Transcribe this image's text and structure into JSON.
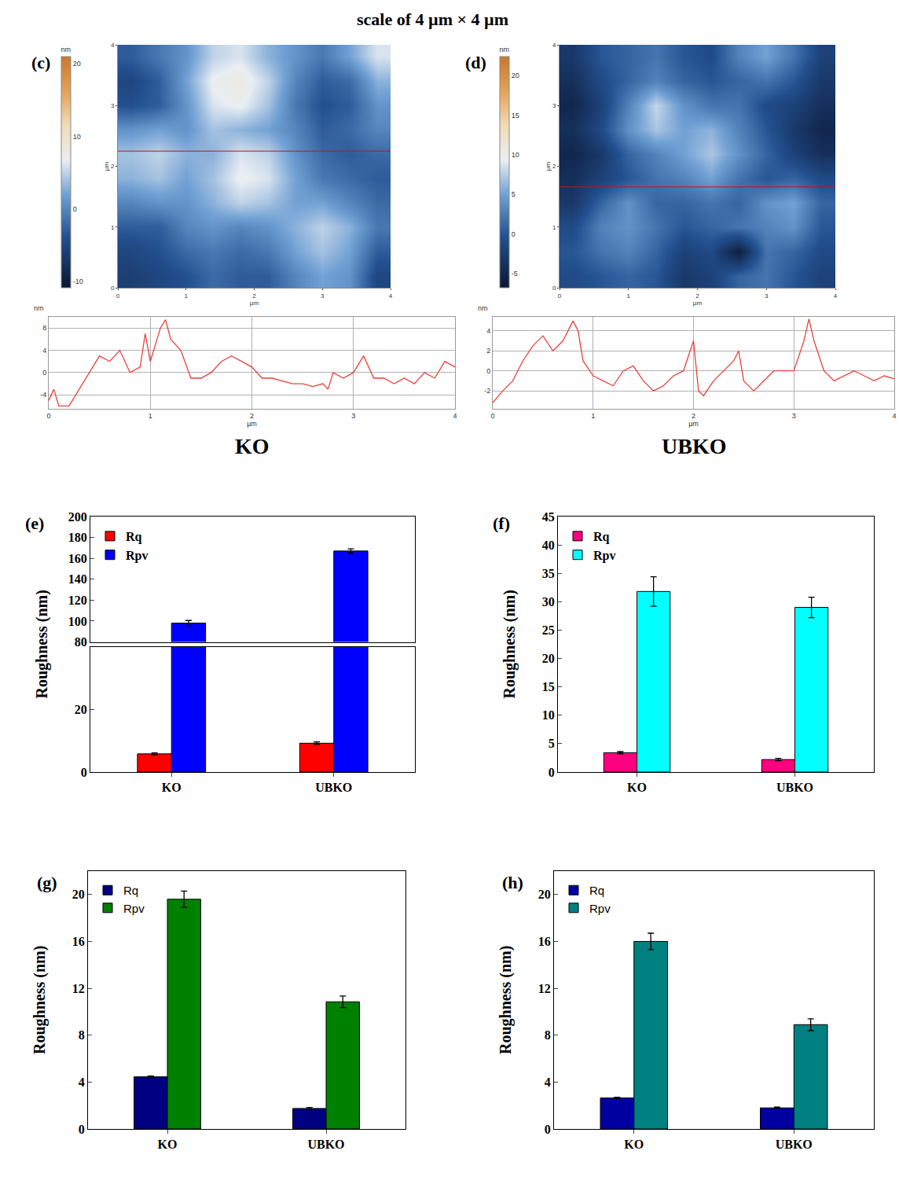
{
  "title": "scale of 4 µm × 4 µm",
  "chart_data": [
    {
      "type": "heatmap",
      "panel": "(c)",
      "x": [
        0.2,
        0.6,
        1.0,
        1.4,
        1.8,
        2.2,
        2.6,
        3.0,
        3.4,
        3.8
      ],
      "y": [
        0.2,
        0.6,
        1.0,
        1.4,
        1.8,
        2.2,
        2.6,
        3.0,
        3.4,
        3.8
      ],
      "z": [
        [
          -6,
          -5,
          -4,
          -2,
          -3,
          -3,
          0,
          2,
          1,
          -5
        ],
        [
          -5,
          -4,
          -2,
          -1,
          -2,
          -1,
          2,
          4,
          2,
          -3
        ],
        [
          -3,
          -3,
          0,
          1,
          0,
          1,
          3,
          5,
          3,
          -1
        ],
        [
          0,
          1,
          1,
          3,
          5,
          4,
          2,
          2,
          0,
          -2
        ],
        [
          3,
          4,
          2,
          4,
          7,
          6,
          2,
          -1,
          -2,
          -3
        ],
        [
          4,
          5,
          3,
          3,
          6,
          5,
          1,
          -2,
          -3,
          -2
        ],
        [
          1,
          2,
          1,
          4,
          3,
          2,
          0,
          -3,
          -2,
          0
        ],
        [
          -4,
          -3,
          1,
          6,
          7,
          4,
          -1,
          -4,
          -3,
          1
        ],
        [
          -5,
          -3,
          2,
          7,
          8,
          5,
          0,
          -3,
          -2,
          3
        ],
        [
          -3,
          -1,
          1,
          5,
          6,
          3,
          1,
          -1,
          2,
          6
        ]
      ],
      "xlim": [
        0,
        4
      ],
      "ylim": [
        0,
        4
      ],
      "xticks": [
        0,
        1,
        2,
        3,
        4
      ],
      "yticks": [
        0,
        1,
        2,
        3,
        4
      ],
      "x_label": "µm",
      "y_label": "µm",
      "profile_y": 2.25,
      "colorbar": {
        "title": "nm",
        "range": [
          -10.9,
          21
        ],
        "ticks": [
          -10,
          0,
          10,
          20
        ]
      }
    },
    {
      "type": "heatmap",
      "panel": "(d)",
      "x": [
        0.2,
        0.6,
        1.0,
        1.4,
        1.8,
        2.2,
        2.6,
        3.0,
        3.4,
        3.8
      ],
      "y": [
        0.2,
        0.6,
        1.0,
        1.4,
        1.8,
        2.2,
        2.6,
        3.0,
        3.4,
        3.8
      ],
      "z": [
        [
          -1,
          0,
          1,
          0,
          -3,
          -2,
          1,
          2,
          0,
          -2
        ],
        [
          0,
          2,
          3,
          1,
          -2,
          -1,
          -6,
          2,
          1,
          -1
        ],
        [
          -1,
          3,
          4,
          2,
          0,
          1,
          2,
          3,
          4,
          0
        ],
        [
          -3,
          1,
          4,
          1,
          1,
          2,
          1,
          4,
          5,
          1
        ],
        [
          -4,
          -2,
          0,
          2,
          3,
          5,
          2,
          0,
          1,
          -1
        ],
        [
          -5,
          -3,
          1,
          3,
          5,
          7,
          4,
          1,
          -2,
          -4
        ],
        [
          -4,
          -1,
          4,
          7,
          5,
          6,
          3,
          0,
          -3,
          -5
        ],
        [
          -5,
          -2,
          3,
          8,
          4,
          2,
          2,
          -1,
          -2,
          -4
        ],
        [
          -4,
          -1,
          1,
          3,
          1,
          0,
          1,
          2,
          0,
          -3
        ],
        [
          -3,
          0,
          1,
          2,
          0,
          -1,
          3,
          5,
          2,
          -2
        ]
      ],
      "xlim": [
        0,
        4
      ],
      "ylim": [
        0,
        4
      ],
      "xticks": [
        0,
        1,
        2,
        3,
        4
      ],
      "yticks": [
        0,
        1,
        2,
        3,
        4
      ],
      "x_label": "µm",
      "y_label": "µm",
      "profile_y": 1.66,
      "colorbar": {
        "title": "nm",
        "range": [
          -6.8,
          22.4
        ],
        "ticks": [
          -5,
          0,
          5,
          10,
          15,
          20
        ]
      }
    },
    {
      "type": "line",
      "caption": "KO",
      "color": "#e8413a",
      "x": [
        0,
        0.05,
        0.1,
        0.2,
        0.3,
        0.4,
        0.5,
        0.6,
        0.7,
        0.8,
        0.9,
        0.95,
        1.0,
        1.1,
        1.15,
        1.2,
        1.3,
        1.4,
        1.5,
        1.6,
        1.7,
        1.8,
        1.9,
        2.0,
        2.1,
        2.2,
        2.3,
        2.4,
        2.5,
        2.6,
        2.7,
        2.75,
        2.8,
        2.9,
        3.0,
        3.1,
        3.2,
        3.3,
        3.4,
        3.5,
        3.6,
        3.7,
        3.8,
        3.9,
        4.0
      ],
      "values": [
        -5,
        -3,
        -6,
        -6,
        -3,
        0,
        3,
        2,
        4,
        0,
        1,
        7,
        2,
        8,
        9.5,
        6,
        4,
        -1,
        -1,
        0,
        2,
        3,
        2,
        1,
        -1,
        -1,
        -1.5,
        -2,
        -2,
        -2.5,
        -2,
        -3,
        0,
        -1,
        0,
        3,
        -1,
        -1,
        -2,
        -1,
        -2,
        0,
        -1,
        2,
        1
      ],
      "xlim": [
        0,
        4
      ],
      "ylim": [
        -6.5,
        10
      ],
      "xticks": [
        0,
        1,
        2,
        3,
        4
      ],
      "yticks": [
        -4,
        0,
        4,
        8
      ],
      "x_label": "µm",
      "y_label": "nm",
      "grid": true
    },
    {
      "type": "line",
      "caption": "UBKO",
      "color": "#e8413a",
      "x": [
        0,
        0.1,
        0.2,
        0.3,
        0.4,
        0.5,
        0.6,
        0.7,
        0.8,
        0.85,
        0.9,
        1.0,
        1.1,
        1.2,
        1.3,
        1.4,
        1.5,
        1.6,
        1.7,
        1.8,
        1.9,
        2.0,
        2.05,
        2.1,
        2.2,
        2.3,
        2.4,
        2.45,
        2.5,
        2.6,
        2.7,
        2.8,
        2.9,
        3.0,
        3.1,
        3.15,
        3.2,
        3.3,
        3.4,
        3.5,
        3.6,
        3.7,
        3.8,
        3.9,
        4.0
      ],
      "values": [
        -3.2,
        -2,
        -1,
        1,
        2.5,
        3.5,
        2,
        3,
        5,
        4,
        1,
        -0.5,
        -1,
        -1.5,
        0,
        0.5,
        -1,
        -2,
        -1.5,
        -0.5,
        0,
        3,
        -2,
        -2.5,
        -1,
        0,
        1,
        2,
        -1,
        -2,
        -1,
        0,
        0,
        0,
        3,
        5.2,
        3,
        0,
        -1,
        -0.5,
        0,
        -0.5,
        -1,
        -0.5,
        -0.8
      ],
      "xlim": [
        0,
        4
      ],
      "ylim": [
        -3.8,
        5.4
      ],
      "xticks": [
        0,
        1,
        2,
        3,
        4
      ],
      "yticks": [
        -2,
        0,
        2,
        4
      ],
      "x_label": "µm",
      "y_label": "nm",
      "grid": true
    },
    {
      "type": "bar",
      "panel": "(e)",
      "categories": [
        "KO",
        "UBKO"
      ],
      "y_label": "Roughness (nm)",
      "legend": "top-left",
      "grid": false,
      "y_segments": [
        {
          "ylim": [
            0,
            40
          ],
          "yticks": [
            0,
            20
          ]
        },
        {
          "ylim": [
            80,
            200
          ],
          "yticks": [
            80,
            100,
            120,
            140,
            160,
            180,
            200
          ]
        }
      ],
      "series": [
        {
          "name": "Rq",
          "color": "#ff0000",
          "values": [
            5.8,
            9.2
          ],
          "errors": [
            0.3,
            0.4
          ]
        },
        {
          "name": "Rpv",
          "color": "#0000ff",
          "values": [
            98,
            167
          ],
          "errors": [
            2.5,
            2
          ]
        }
      ]
    },
    {
      "type": "bar",
      "panel": "(f)",
      "categories": [
        "KO",
        "UBKO"
      ],
      "y_label": "Roughness (nm)",
      "legend": "top-left",
      "grid": false,
      "ylim": [
        0,
        45
      ],
      "yticks": [
        0,
        5,
        10,
        15,
        20,
        25,
        30,
        35,
        40,
        45
      ],
      "series": [
        {
          "name": "Rq",
          "color": "#ff0080",
          "values": [
            3.4,
            2.2
          ],
          "errors": [
            0.2,
            0.2
          ]
        },
        {
          "name": "Rpv",
          "color": "#00ffff",
          "values": [
            31.8,
            29.0
          ],
          "errors": [
            2.6,
            1.8
          ]
        }
      ]
    },
    {
      "type": "bar",
      "panel": "(g)",
      "categories": [
        "KO",
        "UBKO"
      ],
      "y_label": "Roughness (nm)",
      "legend": "top-left",
      "grid": false,
      "ylim": [
        0,
        22
      ],
      "yticks": [
        0,
        4,
        8,
        12,
        16,
        20
      ],
      "series": [
        {
          "name": "Rq",
          "color": "#000080",
          "values": [
            4.45,
            1.75
          ],
          "errors": [
            0.06,
            0.08
          ]
        },
        {
          "name": "Rpv",
          "color": "#008000",
          "values": [
            19.6,
            10.85
          ],
          "errors": [
            0.7,
            0.5
          ]
        }
      ]
    },
    {
      "type": "bar",
      "panel": "(h)",
      "categories": [
        "KO",
        "UBKO"
      ],
      "y_label": "Roughness (nm)",
      "legend": "top-left",
      "grid": false,
      "ylim": [
        0,
        22
      ],
      "yticks": [
        0,
        4,
        8,
        12,
        16,
        20
      ],
      "series": [
        {
          "name": "Rq",
          "color": "#0000a0",
          "values": [
            2.65,
            1.8
          ],
          "errors": [
            0.05,
            0.06
          ]
        },
        {
          "name": "Rpv",
          "color": "#008080",
          "values": [
            16.0,
            8.9
          ],
          "errors": [
            0.7,
            0.5
          ]
        }
      ]
    }
  ]
}
